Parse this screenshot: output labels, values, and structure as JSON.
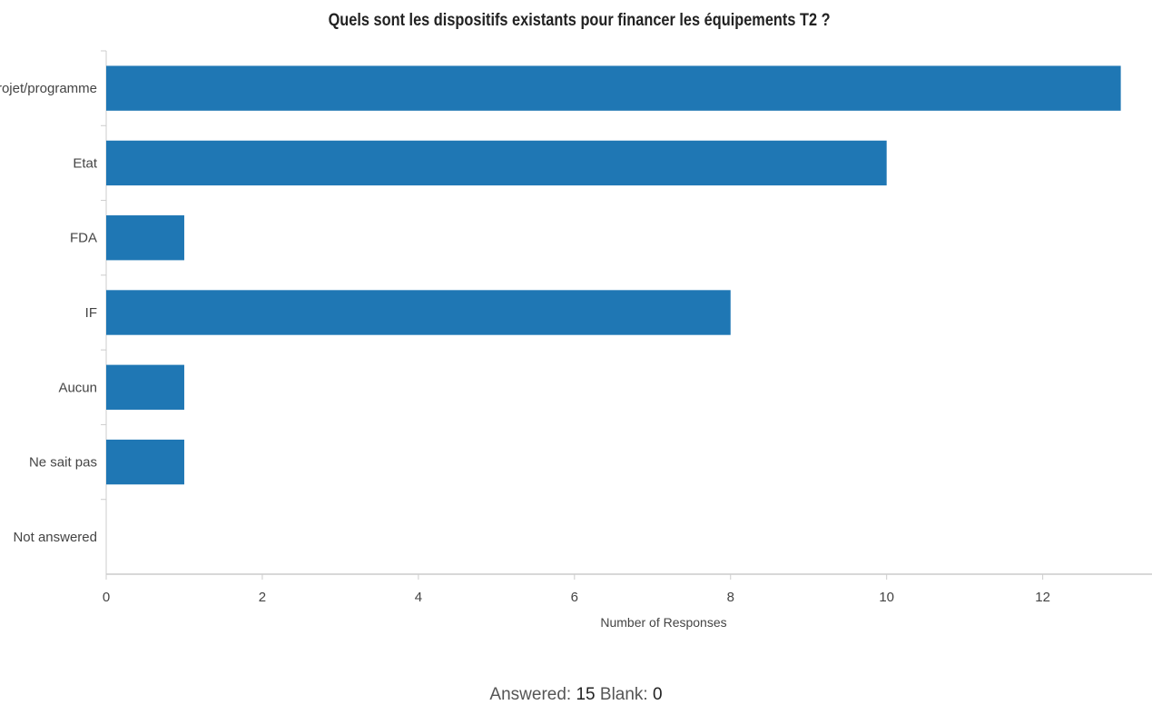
{
  "chart_data": {
    "type": "bar",
    "orientation": "horizontal",
    "title": "Quels sont les dispositifs existants pour financer les équipements T2 ?",
    "xlabel": "Number of Responses",
    "ylabel": "",
    "categories": [
      "Projet/programme",
      "Etat",
      "FDA",
      "IF",
      "Aucun",
      "Ne sait pas",
      "Not answered"
    ],
    "values": [
      13,
      10,
      1,
      8,
      1,
      1,
      0
    ],
    "xlim": [
      0,
      13.4
    ],
    "xticks": [
      0,
      2,
      4,
      6,
      8,
      10,
      12
    ],
    "grid": false,
    "bar_color": "#1f77b4"
  },
  "footer": {
    "answered_label": "Answered:",
    "answered_value": "15",
    "blank_label": "Blank:",
    "blank_value": "0"
  }
}
